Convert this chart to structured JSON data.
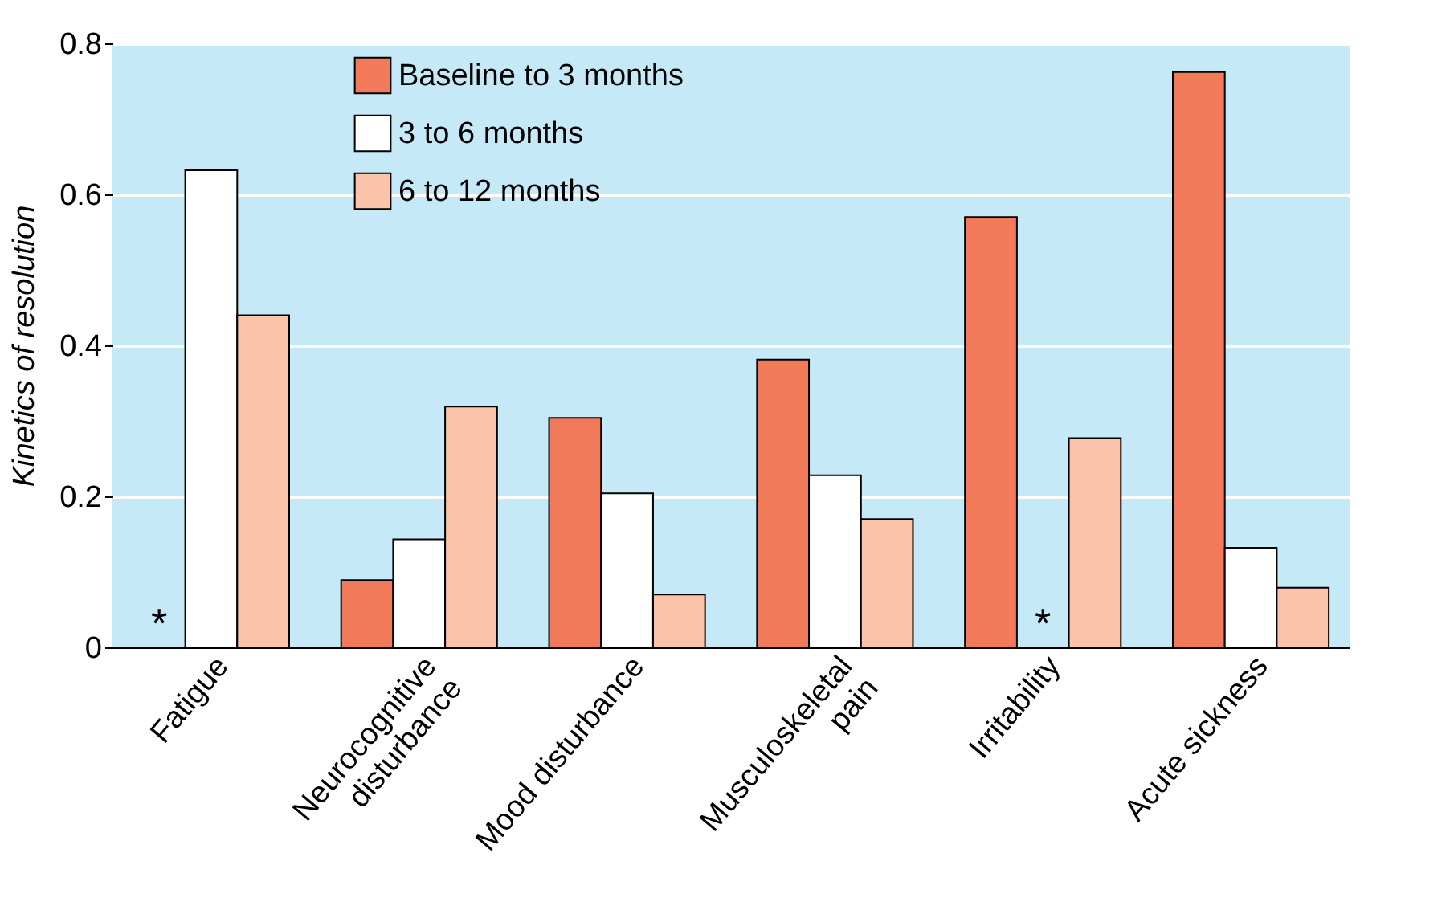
{
  "chart_data": {
    "type": "bar",
    "ylabel": "Kinetics of resolution",
    "categories": [
      "Fatigue",
      "Neurocognitive\ndisturbance",
      "Mood disturbance",
      "Musculoskeletal\npain",
      "Irritability",
      "Acute sickness"
    ],
    "series": [
      {
        "name": "Baseline to 3 months",
        "color": "#f07a5a",
        "values": [
          null,
          0.089,
          0.304,
          0.381,
          0.57,
          0.762
        ]
      },
      {
        "name": "3 to 6 months",
        "color": "#ffffff",
        "values": [
          0.632,
          0.143,
          0.204,
          0.228,
          null,
          0.132
        ]
      },
      {
        "name": "6 to 12 months",
        "color": "#fbc3aa",
        "values": [
          0.44,
          0.319,
          0.07,
          0.17,
          0.277,
          0.079
        ]
      }
    ],
    "ylim": [
      0,
      0.8
    ],
    "yticks": [
      0,
      0.2,
      0.4,
      0.6,
      0.8
    ],
    "grid": "y",
    "legend": "top left",
    "annotations": [
      {
        "text": "*",
        "x": "Fatigue",
        "y": 0.03
      },
      {
        "text": "*",
        "x": "Irritability",
        "y": 0.03
      }
    ]
  }
}
